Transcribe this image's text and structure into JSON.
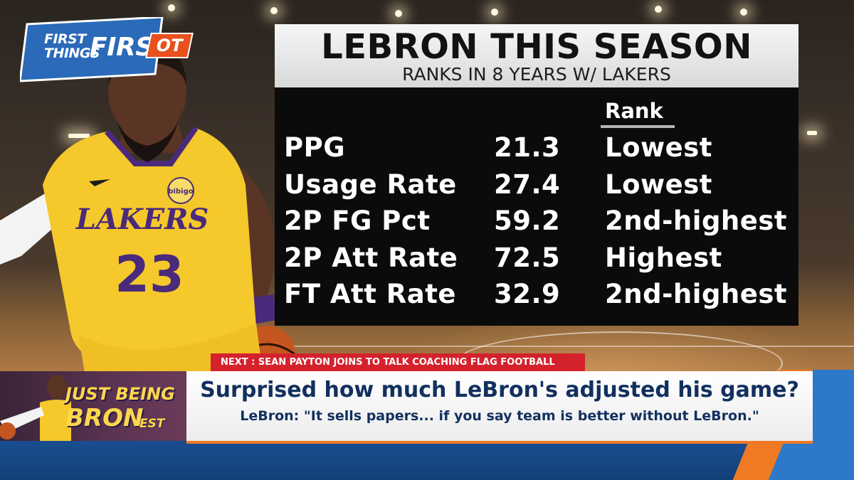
{
  "show_logo": {
    "line_a": "FIRST",
    "line_b": "THINGS",
    "line_c": "FIRST",
    "badge": "OT"
  },
  "card": {
    "title": "LEBRON THIS SEASON",
    "subtitle": "RANKS IN 8 YEARS W/ LAKERS",
    "rank_header": "Rank",
    "rows": [
      {
        "stat": "PPG",
        "value": "21.3",
        "rank": "Lowest"
      },
      {
        "stat": "Usage Rate",
        "value": "27.4",
        "rank": "Lowest"
      },
      {
        "stat": "2P FG Pct",
        "value": "59.2",
        "rank": "2nd-highest"
      },
      {
        "stat": "2P Att Rate",
        "value": "72.5",
        "rank": "Highest"
      },
      {
        "stat": "FT Att Rate",
        "value": "32.9",
        "rank": "2nd-highest"
      }
    ]
  },
  "next_banner": "NEXT : SEAN PAYTON JOINS TO TALK COACHING FLAG FOOTBALL",
  "lower_third": {
    "headline": "Surprised how much LeBron's adjusted his game?",
    "subline": "LeBron: \"It sells papers... if you say team is better without LeBron.\""
  },
  "segment": {
    "line1": "JUST BEING",
    "line2": "BRON",
    "line3": "EST"
  },
  "jersey": {
    "team": "LAKERS",
    "number": "23",
    "patch": "bibigo"
  },
  "colors": {
    "lakers_gold": "#f5c82b",
    "lakers_purple": "#4a2a7a",
    "show_orange": "#f07a23",
    "show_blue": "#1a4f92",
    "next_red": "#d4222c"
  }
}
